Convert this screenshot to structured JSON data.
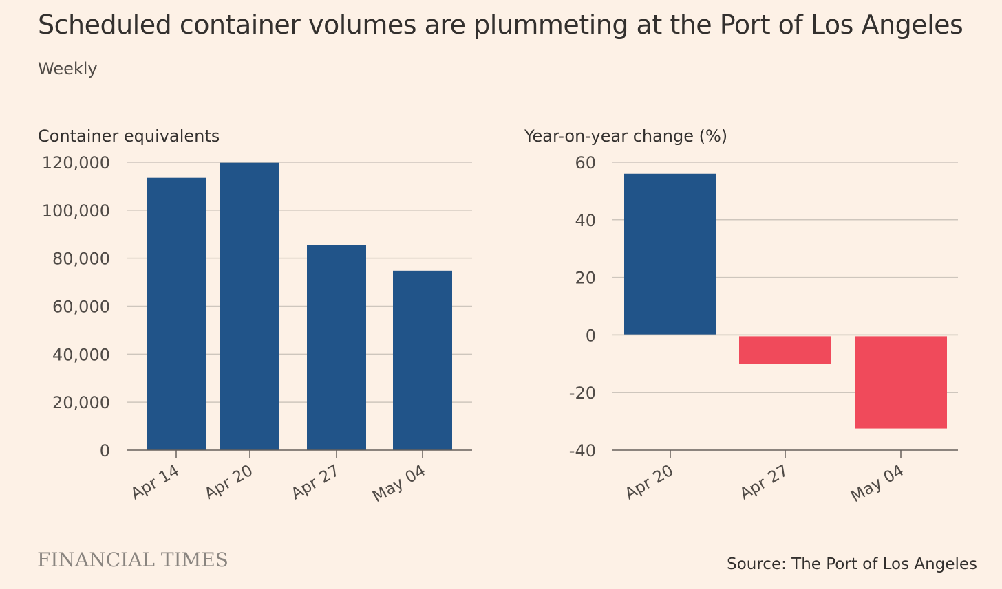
{
  "header": {
    "title": "Scheduled container volumes are plummeting at the Port of Los Angeles",
    "subtitle": "Weekly"
  },
  "footer": {
    "logo_text": "FINANCIAL TIMES",
    "source": "Source: The Port of Los Angeles"
  },
  "colors": {
    "background": "#fdf1e6",
    "positive": "#215489",
    "negative": "#f04a5b",
    "grid": "#cec6bd",
    "axis": "#66605c"
  },
  "chart_data": [
    {
      "type": "bar",
      "ylabel": "Container equivalents",
      "categories": [
        "Apr 14",
        "Apr 20",
        "Apr 27",
        "May 04"
      ],
      "values": [
        113500,
        119800,
        85500,
        74800
      ],
      "ylim": [
        0,
        120000
      ],
      "yticks": [
        0,
        20000,
        40000,
        60000,
        80000,
        100000,
        120000
      ],
      "ytick_labels": [
        "0",
        "20,000",
        "40,000",
        "60,000",
        "80,000",
        "100,000",
        "120,000"
      ],
      "grid": true
    },
    {
      "type": "bar",
      "ylabel": "Year-on-year change (%)",
      "categories": [
        "Apr 20",
        "Apr 27",
        "May 04"
      ],
      "values": [
        56,
        -10,
        -32.5
      ],
      "ylim": [
        -40,
        60
      ],
      "yticks": [
        -40,
        -20,
        0,
        20,
        40,
        60
      ],
      "ytick_labels": [
        "-40",
        "-20",
        "0",
        "20",
        "40",
        "60"
      ],
      "grid": true
    }
  ]
}
